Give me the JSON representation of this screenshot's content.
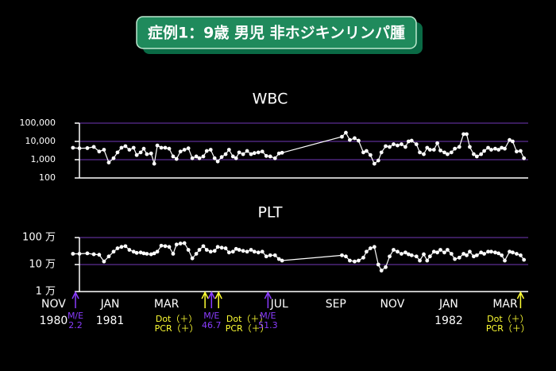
{
  "title": "症例1：9歳 男児 非ホジキンリンパ腫",
  "chart_data": [
    {
      "type": "line",
      "title": "WBC",
      "log_scale": true,
      "color": "#ffffff",
      "grid_color": "#5b2d92",
      "ylim": [
        100,
        100000
      ],
      "yticks": [
        100,
        {
          "value": 1000,
          "label": "1,000"
        },
        {
          "value": 10000,
          "label": "10,000"
        },
        {
          "value": 100000,
          "label": "100,000"
        }
      ],
      "xlim": [
        1,
        16.9
      ],
      "x": [
        0.77,
        1.0,
        1.28,
        1.51,
        1.7,
        1.87,
        2.04,
        2.21,
        2.35,
        2.49,
        2.63,
        2.77,
        2.92,
        3.03,
        3.17,
        3.28,
        3.39,
        3.54,
        3.65,
        3.76,
        3.9,
        4.04,
        4.18,
        4.32,
        4.44,
        4.58,
        4.72,
        4.86,
        5.0,
        5.14,
        5.25,
        5.39,
        5.51,
        5.65,
        5.79,
        5.9,
        6.04,
        6.18,
        6.3,
        6.44,
        6.55,
        6.66,
        6.8,
        6.94,
        7.08,
        7.2,
        7.34,
        7.48,
        7.62,
        7.76,
        7.93,
        8.07,
        8.18,
        10.3,
        10.44,
        10.58,
        10.75,
        10.89,
        11.06,
        11.17,
        11.31,
        11.45,
        11.59,
        11.7,
        11.85,
        11.99,
        12.13,
        12.27,
        12.41,
        12.55,
        12.66,
        12.77,
        12.94,
        13.06,
        13.2,
        13.32,
        13.42,
        13.56,
        13.68,
        13.79,
        13.93,
        14.04,
        14.18,
        14.3,
        14.46,
        14.61,
        14.72,
        14.83,
        14.97,
        15.08,
        15.23,
        15.34,
        15.48,
        15.59,
        15.73,
        15.85,
        15.96,
        16.07,
        16.24,
        16.35,
        16.49,
        16.63,
        16.75
      ],
      "values": [
        4500,
        4200,
        4300,
        5000,
        2800,
        3500,
        700,
        1200,
        2500,
        4500,
        5500,
        3500,
        4500,
        1800,
        2500,
        4000,
        2000,
        2200,
        600,
        6000,
        4500,
        4500,
        4000,
        1500,
        1100,
        2800,
        3500,
        4200,
        1200,
        1500,
        1200,
        1500,
        3000,
        3500,
        1200,
        800,
        1400,
        2000,
        3500,
        1500,
        1200,
        2500,
        2000,
        3000,
        2000,
        2300,
        2500,
        2800,
        1600,
        1500,
        1200,
        2200,
        2400,
        18000,
        30000,
        12000,
        15000,
        11000,
        2500,
        3000,
        1800,
        600,
        900,
        2500,
        5500,
        5000,
        7000,
        6000,
        7000,
        5000,
        10000,
        11000,
        7000,
        2500,
        2000,
        4500,
        3500,
        3500,
        8000,
        3200,
        2500,
        2000,
        2500,
        4000,
        5000,
        25000,
        25000,
        5000,
        2000,
        1500,
        2000,
        3000,
        4500,
        3500,
        4000,
        3500,
        4500,
        4000,
        12000,
        10000,
        2800,
        3000,
        1200
      ]
    },
    {
      "type": "line",
      "title": "PLT",
      "log_scale": true,
      "color": "#ffffff",
      "grid_color": "#5b2d92",
      "ylim": [
        1,
        100
      ],
      "yticks": [
        {
          "value": 1,
          "label": "1 万"
        },
        {
          "value": 10,
          "label": "10 万"
        },
        {
          "value": 100,
          "label": "100 万"
        }
      ],
      "xlim": [
        1,
        16.9
      ],
      "xticks": [
        {
          "value": 0,
          "label": "NOV"
        },
        {
          "value": 2,
          "label": "JAN"
        },
        {
          "value": 4,
          "label": "MAR"
        },
        {
          "value": 8,
          "label": "JUL"
        },
        {
          "value": 10,
          "label": "SEP"
        },
        {
          "value": 12,
          "label": "NOV"
        },
        {
          "value": 14,
          "label": "JAN"
        },
        {
          "value": 16,
          "label": "MAR"
        }
      ],
      "xtick_years": [
        {
          "value": 0,
          "label": "1980"
        },
        {
          "value": 2,
          "label": "1981"
        },
        {
          "value": 14,
          "label": "1982"
        }
      ],
      "x": [
        0.77,
        1.0,
        1.28,
        1.51,
        1.7,
        1.87,
        2.04,
        2.21,
        2.35,
        2.49,
        2.63,
        2.77,
        2.92,
        3.03,
        3.17,
        3.28,
        3.39,
        3.54,
        3.65,
        3.76,
        3.9,
        4.04,
        4.18,
        4.32,
        4.44,
        4.58,
        4.72,
        4.86,
        5.0,
        5.14,
        5.25,
        5.39,
        5.51,
        5.65,
        5.79,
        5.9,
        6.04,
        6.18,
        6.3,
        6.44,
        6.55,
        6.66,
        6.8,
        6.94,
        7.08,
        7.2,
        7.34,
        7.48,
        7.62,
        7.76,
        7.93,
        8.07,
        8.18,
        10.3,
        10.44,
        10.58,
        10.75,
        10.89,
        11.06,
        11.17,
        11.31,
        11.45,
        11.59,
        11.7,
        11.85,
        11.99,
        12.13,
        12.27,
        12.41,
        12.55,
        12.66,
        12.77,
        12.94,
        13.06,
        13.2,
        13.32,
        13.42,
        13.56,
        13.68,
        13.79,
        13.93,
        14.04,
        14.18,
        14.3,
        14.46,
        14.61,
        14.72,
        14.83,
        14.97,
        15.08,
        15.23,
        15.34,
        15.48,
        15.59,
        15.73,
        15.85,
        15.96,
        16.07,
        16.24,
        16.35,
        16.49,
        16.63,
        16.75
      ],
      "values": [
        25,
        25,
        26,
        24,
        23,
        13,
        20,
        30,
        40,
        45,
        48,
        35,
        30,
        27,
        28,
        26,
        25,
        24,
        26,
        30,
        50,
        48,
        45,
        25,
        55,
        60,
        62,
        35,
        17,
        25,
        35,
        48,
        35,
        30,
        32,
        45,
        42,
        40,
        28,
        30,
        38,
        35,
        32,
        30,
        35,
        30,
        28,
        30,
        20,
        22,
        22,
        16,
        14,
        22,
        20,
        14,
        13,
        14,
        18,
        30,
        40,
        45,
        10,
        6,
        8,
        20,
        35,
        30,
        25,
        28,
        24,
        22,
        20,
        14,
        24,
        14,
        20,
        30,
        28,
        35,
        28,
        35,
        25,
        16,
        18,
        25,
        22,
        30,
        20,
        22,
        28,
        25,
        30,
        30,
        28,
        26,
        22,
        14,
        30,
        28,
        25,
        22,
        15
      ]
    }
  ],
  "annotations": [
    {
      "x": 0.86,
      "color": "#8a3cff",
      "lines": [
        "M/E",
        "2.2"
      ]
    },
    {
      "x": 5.45,
      "color": "#ffff33",
      "lines": [
        "Dot（＋）",
        "PCR（＋）"
      ]
    },
    {
      "x": 5.68,
      "color": "#8a3cff",
      "lines": [
        "M/E",
        "46.7"
      ]
    },
    {
      "x": 5.93,
      "color": "#ffff33",
      "lines": [
        "Dot（＋）",
        "PCR（＋）"
      ]
    },
    {
      "x": 7.68,
      "color": "#8a3cff",
      "lines": [
        "M/E",
        "51.3"
      ]
    },
    {
      "x": 16.63,
      "color": "#ffff33",
      "lines": [
        "Dot（＋）",
        "PCR（＋）"
      ]
    }
  ]
}
